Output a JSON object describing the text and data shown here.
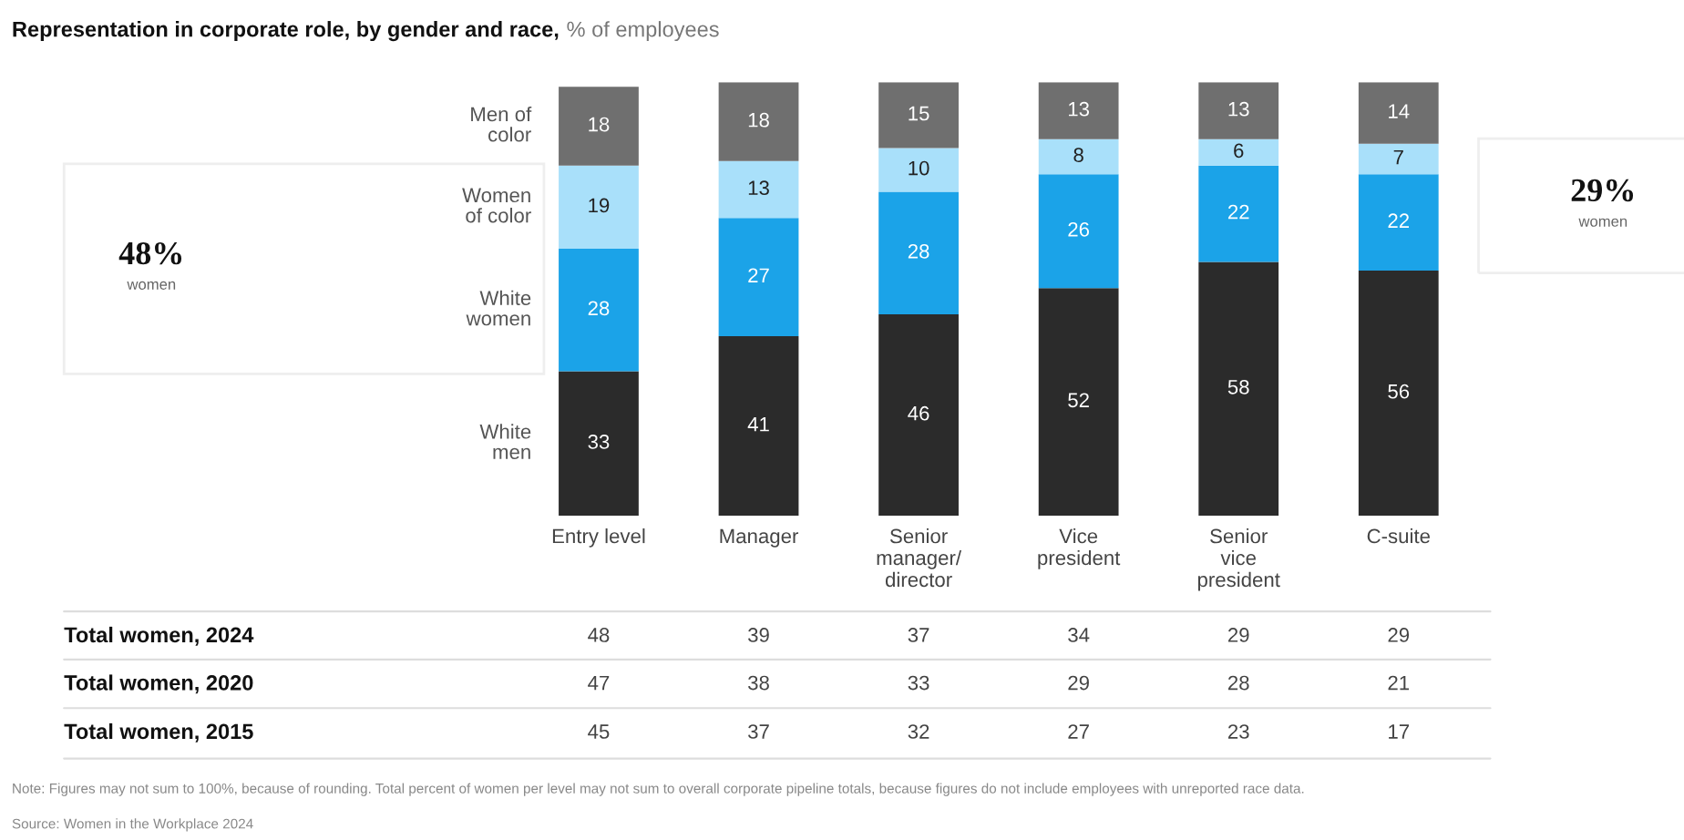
{
  "chart_data": {
    "type": "bar",
    "title": "Representation in corporate role, by gender and race,",
    "subtitle": "% of employees",
    "categories": [
      "Entry level",
      "Manager",
      "Senior\nmanager/\ndirector",
      "Vice\npresident",
      "Senior\nvice\npresident",
      "C-suite"
    ],
    "stacked": true,
    "data_labels": true,
    "tick_labels": "x",
    "grid": false,
    "legend": false,
    "series": [
      {
        "name": "White\nmen",
        "color": "#2b2b2b",
        "values": [
          33,
          41,
          46,
          52,
          58,
          56
        ]
      },
      {
        "name": "White\nwomen",
        "color": "#1ba3e8",
        "values": [
          28,
          27,
          28,
          26,
          22,
          22
        ]
      },
      {
        "name": "Women\nof color",
        "color": "#a9e0fa",
        "values": [
          19,
          13,
          10,
          8,
          6,
          7
        ]
      },
      {
        "name": "Men of\ncolor",
        "color": "#6f6f6f",
        "values": [
          18,
          18,
          15,
          13,
          13,
          14
        ]
      }
    ],
    "annotations": [
      "48%",
      "women",
      "29%",
      "women",
      "Total women, 2024",
      "48",
      "39",
      "37",
      "34",
      "29",
      "29",
      "Total women, 2020",
      "47",
      "38",
      "33",
      "29",
      "28",
      "21",
      "Total women, 2015",
      "45",
      "37",
      "32",
      "27",
      "23",
      "17",
      "Note: Figures may not sum to 100%, because of rounding. Total percent of women per level may not sum to overall corporate pipeline totals, because figures do not include employees with unreported race data.",
      "Source: Women in the Workplace 2024"
    ]
  }
}
